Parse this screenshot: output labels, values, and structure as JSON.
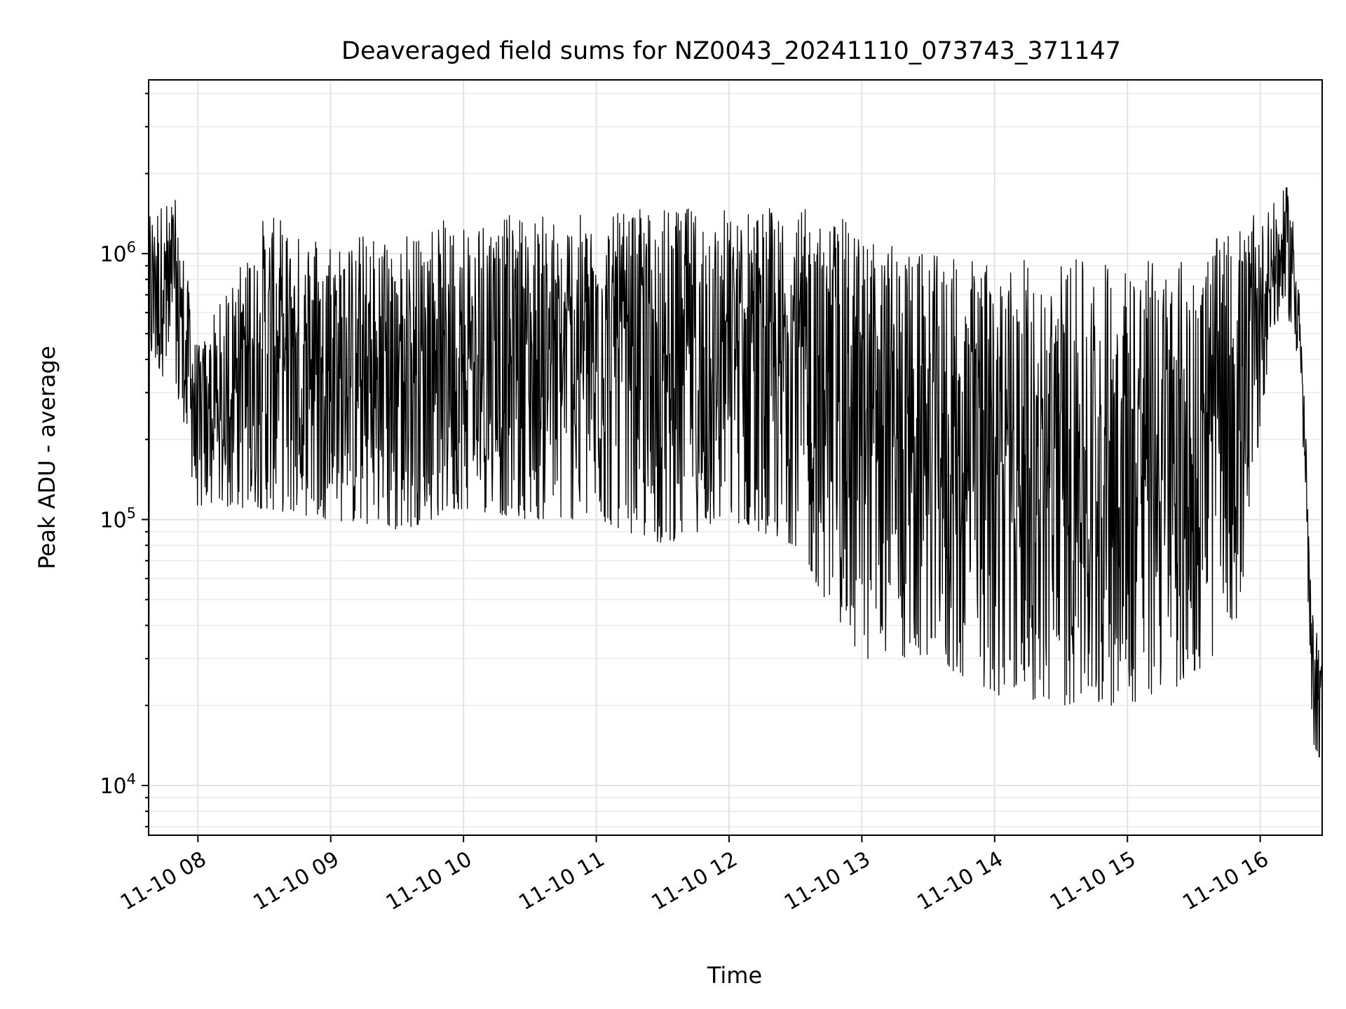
{
  "chart_data": {
    "type": "line",
    "title": "Deaveraged field sums for NZ0043_20241110_073743_371147",
    "xlabel": "Time",
    "ylabel": "Peak ADU - average",
    "yscale": "log",
    "grid": true,
    "legend": "none",
    "line_color": "#000000",
    "xlim": [
      "2024-11-10T07:37:43",
      "2024-11-10T16:28:00"
    ],
    "ylim": [
      6500,
      4500000
    ],
    "x_ticks": [
      {
        "t": "2024-11-10T08:00",
        "label": "11-10 08"
      },
      {
        "t": "2024-11-10T09:00",
        "label": "11-10 09"
      },
      {
        "t": "2024-11-10T10:00",
        "label": "11-10 10"
      },
      {
        "t": "2024-11-10T11:00",
        "label": "11-10 11"
      },
      {
        "t": "2024-11-10T12:00",
        "label": "11-10 12"
      },
      {
        "t": "2024-11-10T13:00",
        "label": "11-10 13"
      },
      {
        "t": "2024-11-10T14:00",
        "label": "11-10 14"
      },
      {
        "t": "2024-11-10T15:00",
        "label": "11-10 15"
      },
      {
        "t": "2024-11-10T16:00",
        "label": "11-10 16"
      }
    ],
    "y_ticks": [
      {
        "value": 10000,
        "base": "10",
        "exp": "4"
      },
      {
        "value": 100000,
        "base": "10",
        "exp": "5"
      },
      {
        "value": 1000000,
        "base": "10",
        "exp": "6"
      }
    ],
    "envelope": {
      "description_points_time": [
        "07:38",
        "07:50",
        "08:00",
        "08:30",
        "09:00",
        "09:30",
        "10:00",
        "10:30",
        "11:00",
        "11:30",
        "12:00",
        "12:30",
        "12:50",
        "13:00",
        "13:30",
        "14:00",
        "14:30",
        "15:00",
        "15:30",
        "15:50",
        "16:05",
        "16:12",
        "16:17",
        "16:20",
        "16:23",
        "16:28"
      ],
      "high": [
        1500000,
        1600000,
        450000,
        1400000,
        1200000,
        1200000,
        1400000,
        1400000,
        1400000,
        1500000,
        1500000,
        1500000,
        1400000,
        1200000,
        1000000,
        950000,
        950000,
        950000,
        1000000,
        1300000,
        1500000,
        1800000,
        1100000,
        300000,
        50000,
        30000
      ],
      "low": [
        400000,
        300000,
        110000,
        110000,
        100000,
        90000,
        110000,
        100000,
        100000,
        80000,
        100000,
        80000,
        40000,
        30000,
        30000,
        22000,
        20000,
        20000,
        25000,
        40000,
        500000,
        600000,
        400000,
        150000,
        15000,
        12000
      ]
    }
  }
}
